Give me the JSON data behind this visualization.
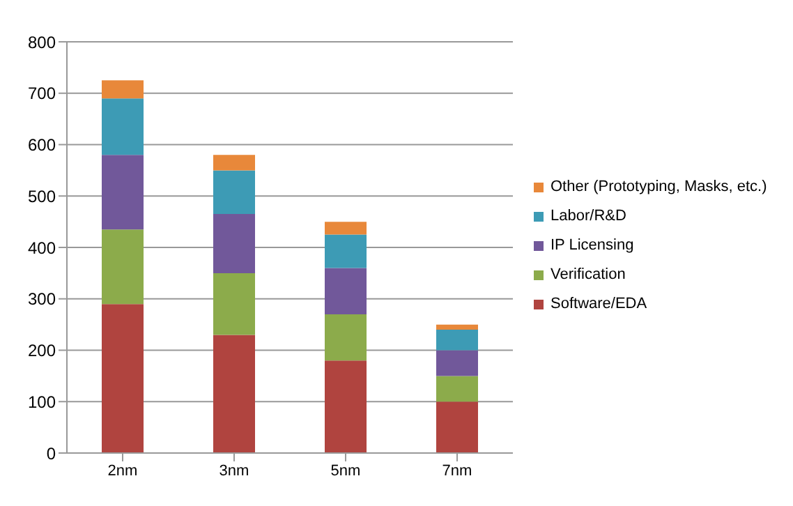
{
  "chart_data": {
    "type": "bar",
    "stacked": true,
    "categories": [
      "2nm",
      "3nm",
      "5nm",
      "7nm"
    ],
    "series": [
      {
        "name": "Software/EDA",
        "color": "#b0443f",
        "values": [
          290,
          230,
          180,
          100
        ]
      },
      {
        "name": "Verification",
        "color": "#8cab4b",
        "values": [
          145,
          120,
          90,
          50
        ]
      },
      {
        "name": "IP Licensing",
        "color": "#71589a",
        "values": [
          145,
          115,
          90,
          50
        ]
      },
      {
        "name": "Labor/R&D",
        "color": "#3d9bb5",
        "values": [
          110,
          85,
          65,
          40
        ]
      },
      {
        "name": "Other (Prototyping, Masks, etc.)",
        "color": "#e8883a",
        "values": [
          35,
          30,
          25,
          10
        ]
      }
    ],
    "ylim": [
      0,
      800
    ],
    "yticks": [
      0,
      100,
      200,
      300,
      400,
      500,
      600,
      700,
      800
    ],
    "grid": "y",
    "legend": "right"
  }
}
